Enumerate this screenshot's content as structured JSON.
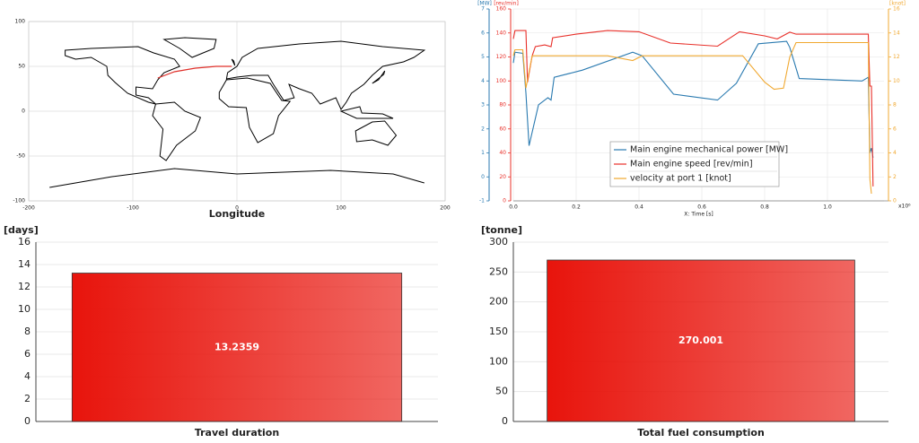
{
  "chart_data": [
    {
      "type": "map",
      "xlabel": "Longitude",
      "xlim": [
        -200,
        200
      ],
      "ylim": [
        -100,
        100
      ],
      "xticks": [
        -200,
        -100,
        0,
        100,
        200
      ],
      "yticks": [
        -100,
        -50,
        0,
        50,
        100
      ],
      "grid": true,
      "route": {
        "color": "#e0302a",
        "x": [
          -76,
          -60,
          -40,
          -20,
          -5
        ],
        "y": [
          37,
          44,
          48,
          50,
          50
        ]
      }
    },
    {
      "type": "line",
      "xlabel": "X: Time [s]",
      "x_multiplier": "x10⁶",
      "xlim": [
        0,
        1.18
      ],
      "xticks": [
        {
          "value": 0,
          "label": "0.0"
        },
        0.2,
        0.4,
        0.6,
        0.8,
        {
          "value": 1,
          "label": "1.0"
        }
      ],
      "ylabel": "[MW]",
      "ylim": [
        -1,
        7
      ],
      "yticks": [
        -1,
        0,
        1,
        2,
        3,
        4,
        5,
        6,
        7
      ],
      "y2label": "[rev/min]",
      "y2lim": [
        0,
        160
      ],
      "y2ticks": [
        0,
        20,
        40,
        60,
        80,
        100,
        120,
        140,
        160
      ],
      "y3label": "[knot]",
      "y3lim": [
        0,
        16
      ],
      "y3ticks": [
        0,
        2,
        4,
        6,
        8,
        10,
        12,
        14,
        16
      ],
      "grid": true,
      "legend": "bottom-center",
      "series": [
        {
          "name": "Main engine mechanical power [MW]",
          "color": "#2a7ab0",
          "axis": "y",
          "x": [
            0,
            0.005,
            0.03,
            0.04,
            0.05,
            0.08,
            0.11,
            0.12,
            0.13,
            0.22,
            0.38,
            0.41,
            0.51,
            0.65,
            0.71,
            0.78,
            0.87,
            0.88,
            0.91,
            1.11,
            1.13,
            1.135,
            1.14,
            1.145
          ],
          "values": [
            4.75,
            5.2,
            5.15,
            3.5,
            1.3,
            3.0,
            3.3,
            3.2,
            4.15,
            4.45,
            5.2,
            5.05,
            3.45,
            3.2,
            3.9,
            5.55,
            5.65,
            5.4,
            4.1,
            4.0,
            4.15,
            1.0,
            1.2,
            0.8
          ]
        },
        {
          "name": "Main engine speed [rev/min]",
          "color": "#e8302a",
          "axis": "y2",
          "x": [
            0,
            0.005,
            0.04,
            0.045,
            0.06,
            0.07,
            0.1,
            0.12,
            0.125,
            0.2,
            0.3,
            0.4,
            0.5,
            0.65,
            0.72,
            0.8,
            0.84,
            0.88,
            0.9,
            1.13,
            1.135,
            1.14,
            1.145
          ],
          "values": [
            135,
            142,
            142,
            99,
            121,
            128.6,
            130,
            128.6,
            136,
            139,
            142,
            141,
            131.6,
            129,
            141,
            137.6,
            135,
            140.6,
            139,
            139,
            95.7,
            95.7,
            12
          ]
        },
        {
          "name": "velocity at port 1 [knot]",
          "color": "#f0a830",
          "axis": "y3",
          "x": [
            0,
            0.005,
            0.03,
            0.04,
            0.06,
            0.3,
            0.38,
            0.41,
            0.73,
            0.8,
            0.83,
            0.86,
            0.88,
            0.9,
            1.13,
            1.135,
            1.14
          ],
          "values": [
            12.1,
            12.6,
            12.6,
            9.4,
            12.1,
            12.1,
            11.7,
            12.1,
            12.1,
            9.9,
            9.3,
            9.4,
            12.0,
            13.2,
            13.2,
            1.8,
            0.6
          ]
        }
      ]
    },
    {
      "type": "bar",
      "ylabel": "[days]",
      "categories": [
        "Travel duration"
      ],
      "values": [
        13.2359
      ],
      "color": "#e8140c",
      "ylim": [
        0,
        16
      ],
      "yticks": [
        0,
        2,
        4,
        6,
        8,
        10,
        12,
        14,
        16
      ],
      "grid": true
    },
    {
      "type": "bar",
      "ylabel": "[tonne]",
      "categories": [
        "Total fuel consumption"
      ],
      "values": [
        270.001
      ],
      "color": "#e8140c",
      "ylim": [
        0,
        300
      ],
      "yticks": [
        0,
        50,
        100,
        150,
        200,
        250,
        300
      ],
      "grid": true
    }
  ]
}
